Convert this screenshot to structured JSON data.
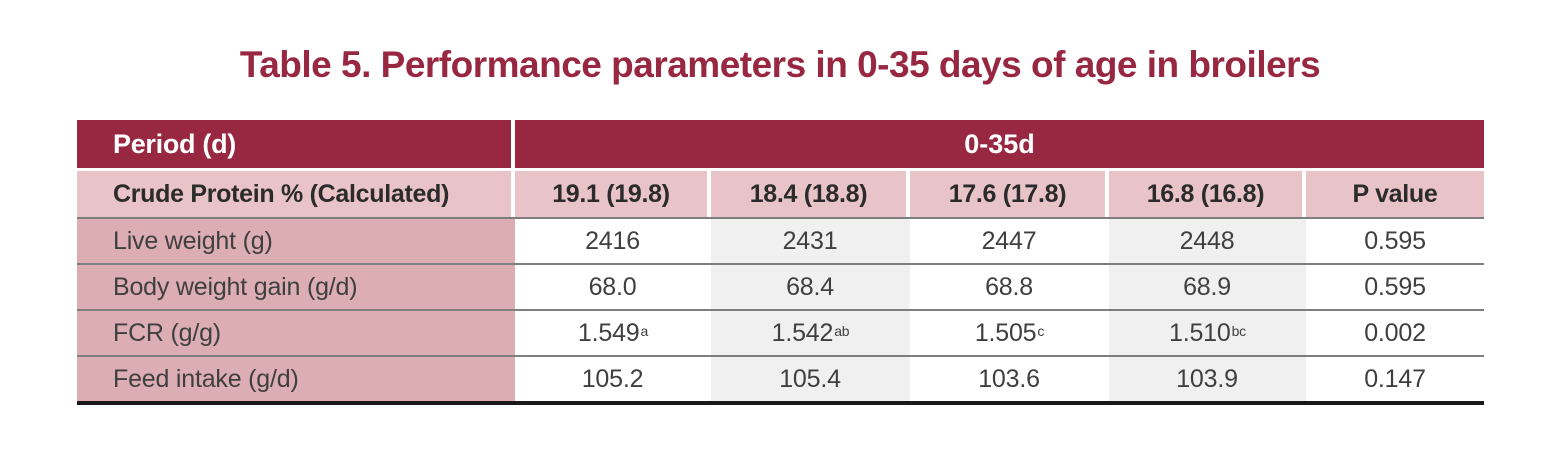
{
  "title": "Table 5. Performance parameters in 0-35 days of age in broilers",
  "colors": {
    "accent_maroon": "#982742",
    "subheader_pink": "#E8C3C8",
    "label_column_pink": "#DCAEB4",
    "column_stripe_gray": "#f0f0f0",
    "divider_gray": "#7e7e7e",
    "bottom_border_black": "#191919"
  },
  "table": {
    "header": {
      "period_label": "Period (d)",
      "span_label": "0-35d"
    },
    "subheader": {
      "label": "Crude Protein % (Calculated)",
      "cols": [
        "19.1 (19.8)",
        "18.4 (18.8)",
        "17.6 (17.8)",
        "16.8 (16.8)"
      ],
      "p_label": "P value"
    },
    "rows": [
      {
        "label": "Live weight (g)",
        "values": [
          "2416",
          "2431",
          "2447",
          "2448"
        ],
        "sups": [
          "",
          "",
          "",
          ""
        ],
        "p": "0.595"
      },
      {
        "label": "Body weight gain (g/d)",
        "values": [
          "68.0",
          "68.4",
          "68.8",
          "68.9"
        ],
        "sups": [
          "",
          "",
          "",
          ""
        ],
        "p": "0.595"
      },
      {
        "label": "FCR (g/g)",
        "values": [
          "1.549",
          "1.542",
          "1.505",
          "1.510"
        ],
        "sups": [
          "a",
          "ab",
          "c",
          "bc"
        ],
        "p": "0.002"
      },
      {
        "label": "Feed intake (g/d)",
        "values": [
          "105.2",
          "105.4",
          "103.6",
          "103.9"
        ],
        "sups": [
          "",
          "",
          "",
          ""
        ],
        "p": "0.147"
      }
    ]
  }
}
